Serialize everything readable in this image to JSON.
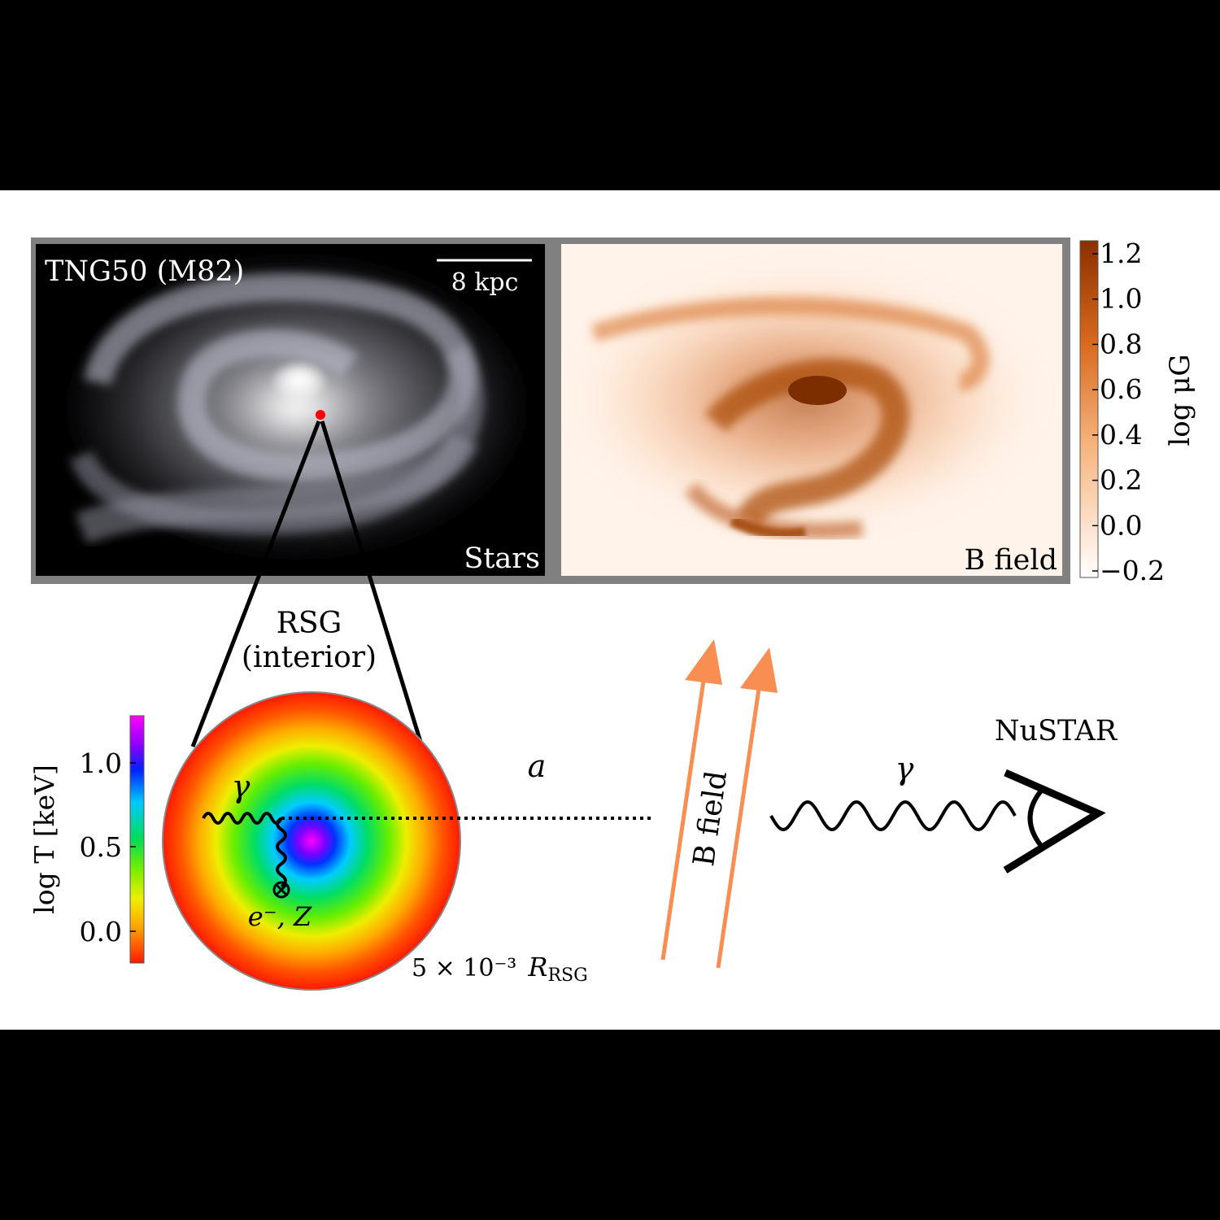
{
  "galaxy_panel": {
    "title": "TNG50 (M82)",
    "scale_bar_label": "8 kpc",
    "stars_label": "Stars",
    "bfield_label": "B field"
  },
  "bfield_colorbar": {
    "label": "log μG",
    "ticks": [
      "1.2",
      "1.0",
      "0.8",
      "0.6",
      "0.4",
      "0.2",
      "0.0",
      "−0.2"
    ],
    "colors": {
      "low": "#ffffff",
      "high": "#8a2f00"
    }
  },
  "rsg": {
    "title_line1": "RSG",
    "title_line2": "(interior)",
    "photon_label": "γ",
    "scatterer_label": "e⁻, Z",
    "radius_label_prefix": "5 × 10⁻³",
    "radius_label_symbol": "R",
    "radius_label_sub": "RSG"
  },
  "temperature_colorbar": {
    "label": "log T [keV]",
    "ticks": [
      "1.0",
      "0.5",
      "0.0"
    ]
  },
  "propagation": {
    "axion_label": "a",
    "field_label": "B field",
    "photon_label": "γ",
    "detector_label": "NuSTAR"
  },
  "colors": {
    "arrow": "#f98e52",
    "marker": "#ff0000",
    "frame": "#808080"
  }
}
